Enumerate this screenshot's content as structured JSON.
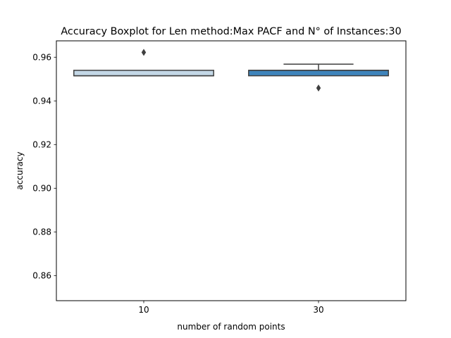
{
  "chart_data": {
    "type": "boxplot",
    "title": "Accuracy Boxplot for Len method:Max PACF and N° of Instances:30",
    "xlabel": "number of random points",
    "ylabel": "accuracy",
    "categories": [
      "10",
      "30"
    ],
    "ylim": [
      0.8485,
      0.9675
    ],
    "yticks": [
      0.86,
      0.88,
      0.9,
      0.92,
      0.94,
      0.96
    ],
    "ytick_labels": [
      "0.86",
      "0.88",
      "0.90",
      "0.92",
      "0.94",
      "0.96"
    ],
    "boxes": [
      {
        "category": "10",
        "q1": 0.9515,
        "median": 0.9515,
        "q3": 0.954,
        "whisker_low": 0.9515,
        "whisker_high": 0.954,
        "outliers": [
          0.9622
        ],
        "color": "#c3d7e6"
      },
      {
        "category": "30",
        "q1": 0.9515,
        "median": 0.954,
        "q3": 0.954,
        "whisker_low": 0.9515,
        "whisker_high": 0.9568,
        "outliers": [
          0.9459
        ],
        "color": "#3e84bb"
      }
    ],
    "grid": false,
    "legend": "none"
  }
}
